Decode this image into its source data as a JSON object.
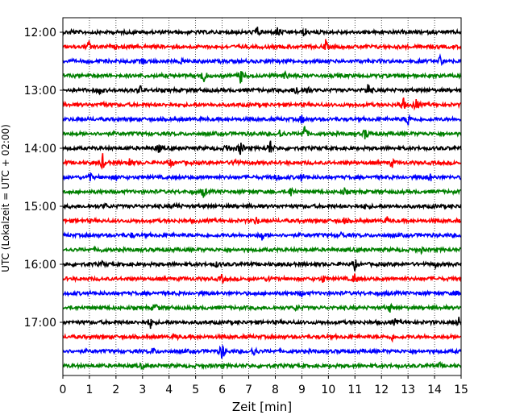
{
  "chart_data": {
    "type": "line",
    "title": "",
    "xlabel": "Zeit  [min]",
    "ylabel": "UTC (Lokalzeit = UTC + 02:00)",
    "xlim": [
      0,
      15
    ],
    "x_ticks": [
      "0",
      "1",
      "2",
      "3",
      "4",
      "5",
      "6",
      "7",
      "8",
      "9",
      "10",
      "11",
      "12",
      "13",
      "14",
      "15"
    ],
    "y_ticks": [
      "12:00",
      "13:00",
      "14:00",
      "15:00",
      "16:00",
      "17:00"
    ],
    "grid": "vertical dotted",
    "color_cycle": [
      "#000000",
      "#ff0000",
      "#0000ff",
      "#008000"
    ],
    "series": [
      {
        "start": "12:00",
        "color": "#000000",
        "events": [
          [
            0.35,
            4
          ],
          [
            7.3,
            9
          ],
          [
            8.1,
            8
          ],
          [
            9.1,
            6
          ]
        ]
      },
      {
        "start": "12:15",
        "color": "#ff0000",
        "events": [
          [
            1.0,
            9
          ],
          [
            9.9,
            7
          ]
        ]
      },
      {
        "start": "12:30",
        "color": "#0000ff",
        "events": [
          [
            3.0,
            5
          ],
          [
            4.5,
            5
          ],
          [
            14.2,
            7
          ]
        ]
      },
      {
        "start": "12:45",
        "color": "#008000",
        "events": [
          [
            5.3,
            12
          ],
          [
            6.7,
            11
          ],
          [
            8.4,
            6
          ]
        ]
      },
      {
        "start": "13:00",
        "color": "#000000",
        "events": [
          [
            1.4,
            6
          ],
          [
            2.9,
            7
          ],
          [
            8.8,
            9
          ],
          [
            9.2,
            7
          ],
          [
            11.5,
            11
          ]
        ]
      },
      {
        "start": "13:15",
        "color": "#ff0000",
        "events": [
          [
            1.5,
            5
          ],
          [
            12.8,
            13
          ],
          [
            13.3,
            9
          ]
        ]
      },
      {
        "start": "13:30",
        "color": "#0000ff",
        "events": [
          [
            9.0,
            6
          ],
          [
            13.0,
            10
          ]
        ]
      },
      {
        "start": "13:45",
        "color": "#008000",
        "events": [
          [
            8.2,
            8
          ],
          [
            9.1,
            13
          ],
          [
            11.4,
            8
          ]
        ]
      },
      {
        "start": "14:00",
        "color": "#000000",
        "events": [
          [
            3.6,
            7
          ],
          [
            6.2,
            7
          ],
          [
            6.7,
            12
          ],
          [
            7.8,
            12
          ]
        ]
      },
      {
        "start": "14:15",
        "color": "#ff0000",
        "events": [
          [
            1.5,
            10
          ],
          [
            2.5,
            7
          ],
          [
            4.1,
            5
          ],
          [
            6.5,
            7
          ],
          [
            12.4,
            5
          ]
        ]
      },
      {
        "start": "14:30",
        "color": "#0000ff",
        "events": [
          [
            1.0,
            8
          ],
          [
            2.0,
            4
          ],
          [
            8.1,
            5
          ],
          [
            9.0,
            5
          ],
          [
            13.8,
            8
          ]
        ]
      },
      {
        "start": "14:45",
        "color": "#008000",
        "events": [
          [
            5.3,
            8
          ],
          [
            8.6,
            7
          ],
          [
            10.6,
            4
          ]
        ]
      },
      {
        "start": "15:00",
        "color": "#000000",
        "events": [
          [
            1.6,
            3
          ],
          [
            4.3,
            4
          ],
          [
            11.4,
            4
          ]
        ]
      },
      {
        "start": "15:15",
        "color": "#ff0000",
        "events": [
          [
            0.6,
            3
          ],
          [
            7.3,
            6
          ],
          [
            10.6,
            4
          ],
          [
            12.2,
            4
          ]
        ]
      },
      {
        "start": "15:30",
        "color": "#0000ff",
        "events": [
          [
            2.6,
            3
          ],
          [
            7.5,
            7
          ],
          [
            10.5,
            4
          ]
        ]
      },
      {
        "start": "15:45",
        "color": "#008000",
        "events": [
          [
            1.4,
            3
          ],
          [
            13.5,
            3
          ]
        ]
      },
      {
        "start": "16:00",
        "color": "#000000",
        "events": [
          [
            1.5,
            3
          ],
          [
            5.8,
            3
          ],
          [
            11.0,
            7
          ],
          [
            14.0,
            4
          ]
        ]
      },
      {
        "start": "16:15",
        "color": "#ff0000",
        "events": [
          [
            6.0,
            6
          ],
          [
            7.8,
            5
          ],
          [
            9.8,
            5
          ],
          [
            11.0,
            9
          ]
        ]
      },
      {
        "start": "16:30",
        "color": "#0000ff",
        "events": [
          [
            9.0,
            3
          ],
          [
            14.8,
            3
          ]
        ]
      },
      {
        "start": "16:45",
        "color": "#008000",
        "events": [
          [
            3.5,
            6
          ],
          [
            8.8,
            4
          ],
          [
            12.3,
            6
          ]
        ]
      },
      {
        "start": "17:00",
        "color": "#000000",
        "events": [
          [
            3.3,
            7
          ],
          [
            12.5,
            4
          ],
          [
            14.9,
            6
          ]
        ]
      },
      {
        "start": "17:15",
        "color": "#ff0000",
        "events": [
          [
            4.3,
            3
          ],
          [
            12.4,
            4
          ]
        ]
      },
      {
        "start": "17:30",
        "color": "#0000ff",
        "events": [
          [
            3.4,
            5
          ],
          [
            6.0,
            14
          ],
          [
            7.2,
            8
          ]
        ]
      },
      {
        "start": "17:45",
        "color": "#008000",
        "events": [
          [
            3.0,
            4
          ],
          [
            14.2,
            3
          ]
        ]
      }
    ]
  }
}
